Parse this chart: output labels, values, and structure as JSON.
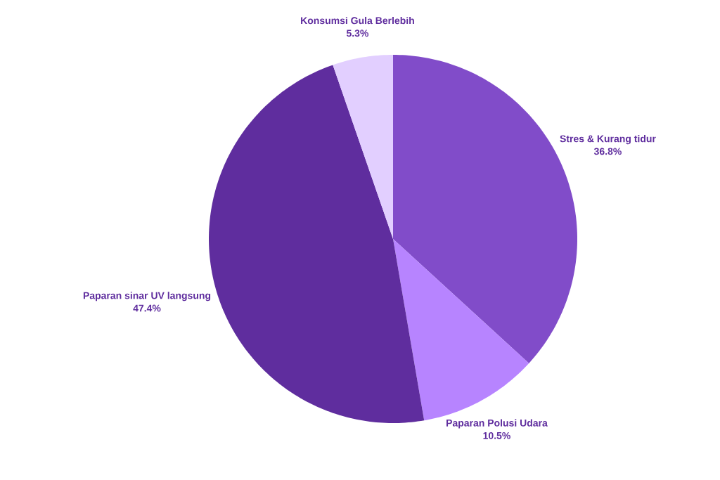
{
  "chart_data": {
    "type": "pie",
    "categories": [
      "Stres & Kurang tidur",
      "Paparan Polusi Udara",
      "Paparan sinar UV langsung",
      "Konsumsi Gula Berlebih"
    ],
    "values": [
      36.8,
      10.5,
      47.4,
      5.3
    ],
    "value_labels": [
      "36.8%",
      "10.5%",
      "47.4%",
      "5.3%"
    ],
    "colors": [
      "#814cc9",
      "#b784ff",
      "#5f2d9e",
      "#e2cfff"
    ]
  }
}
